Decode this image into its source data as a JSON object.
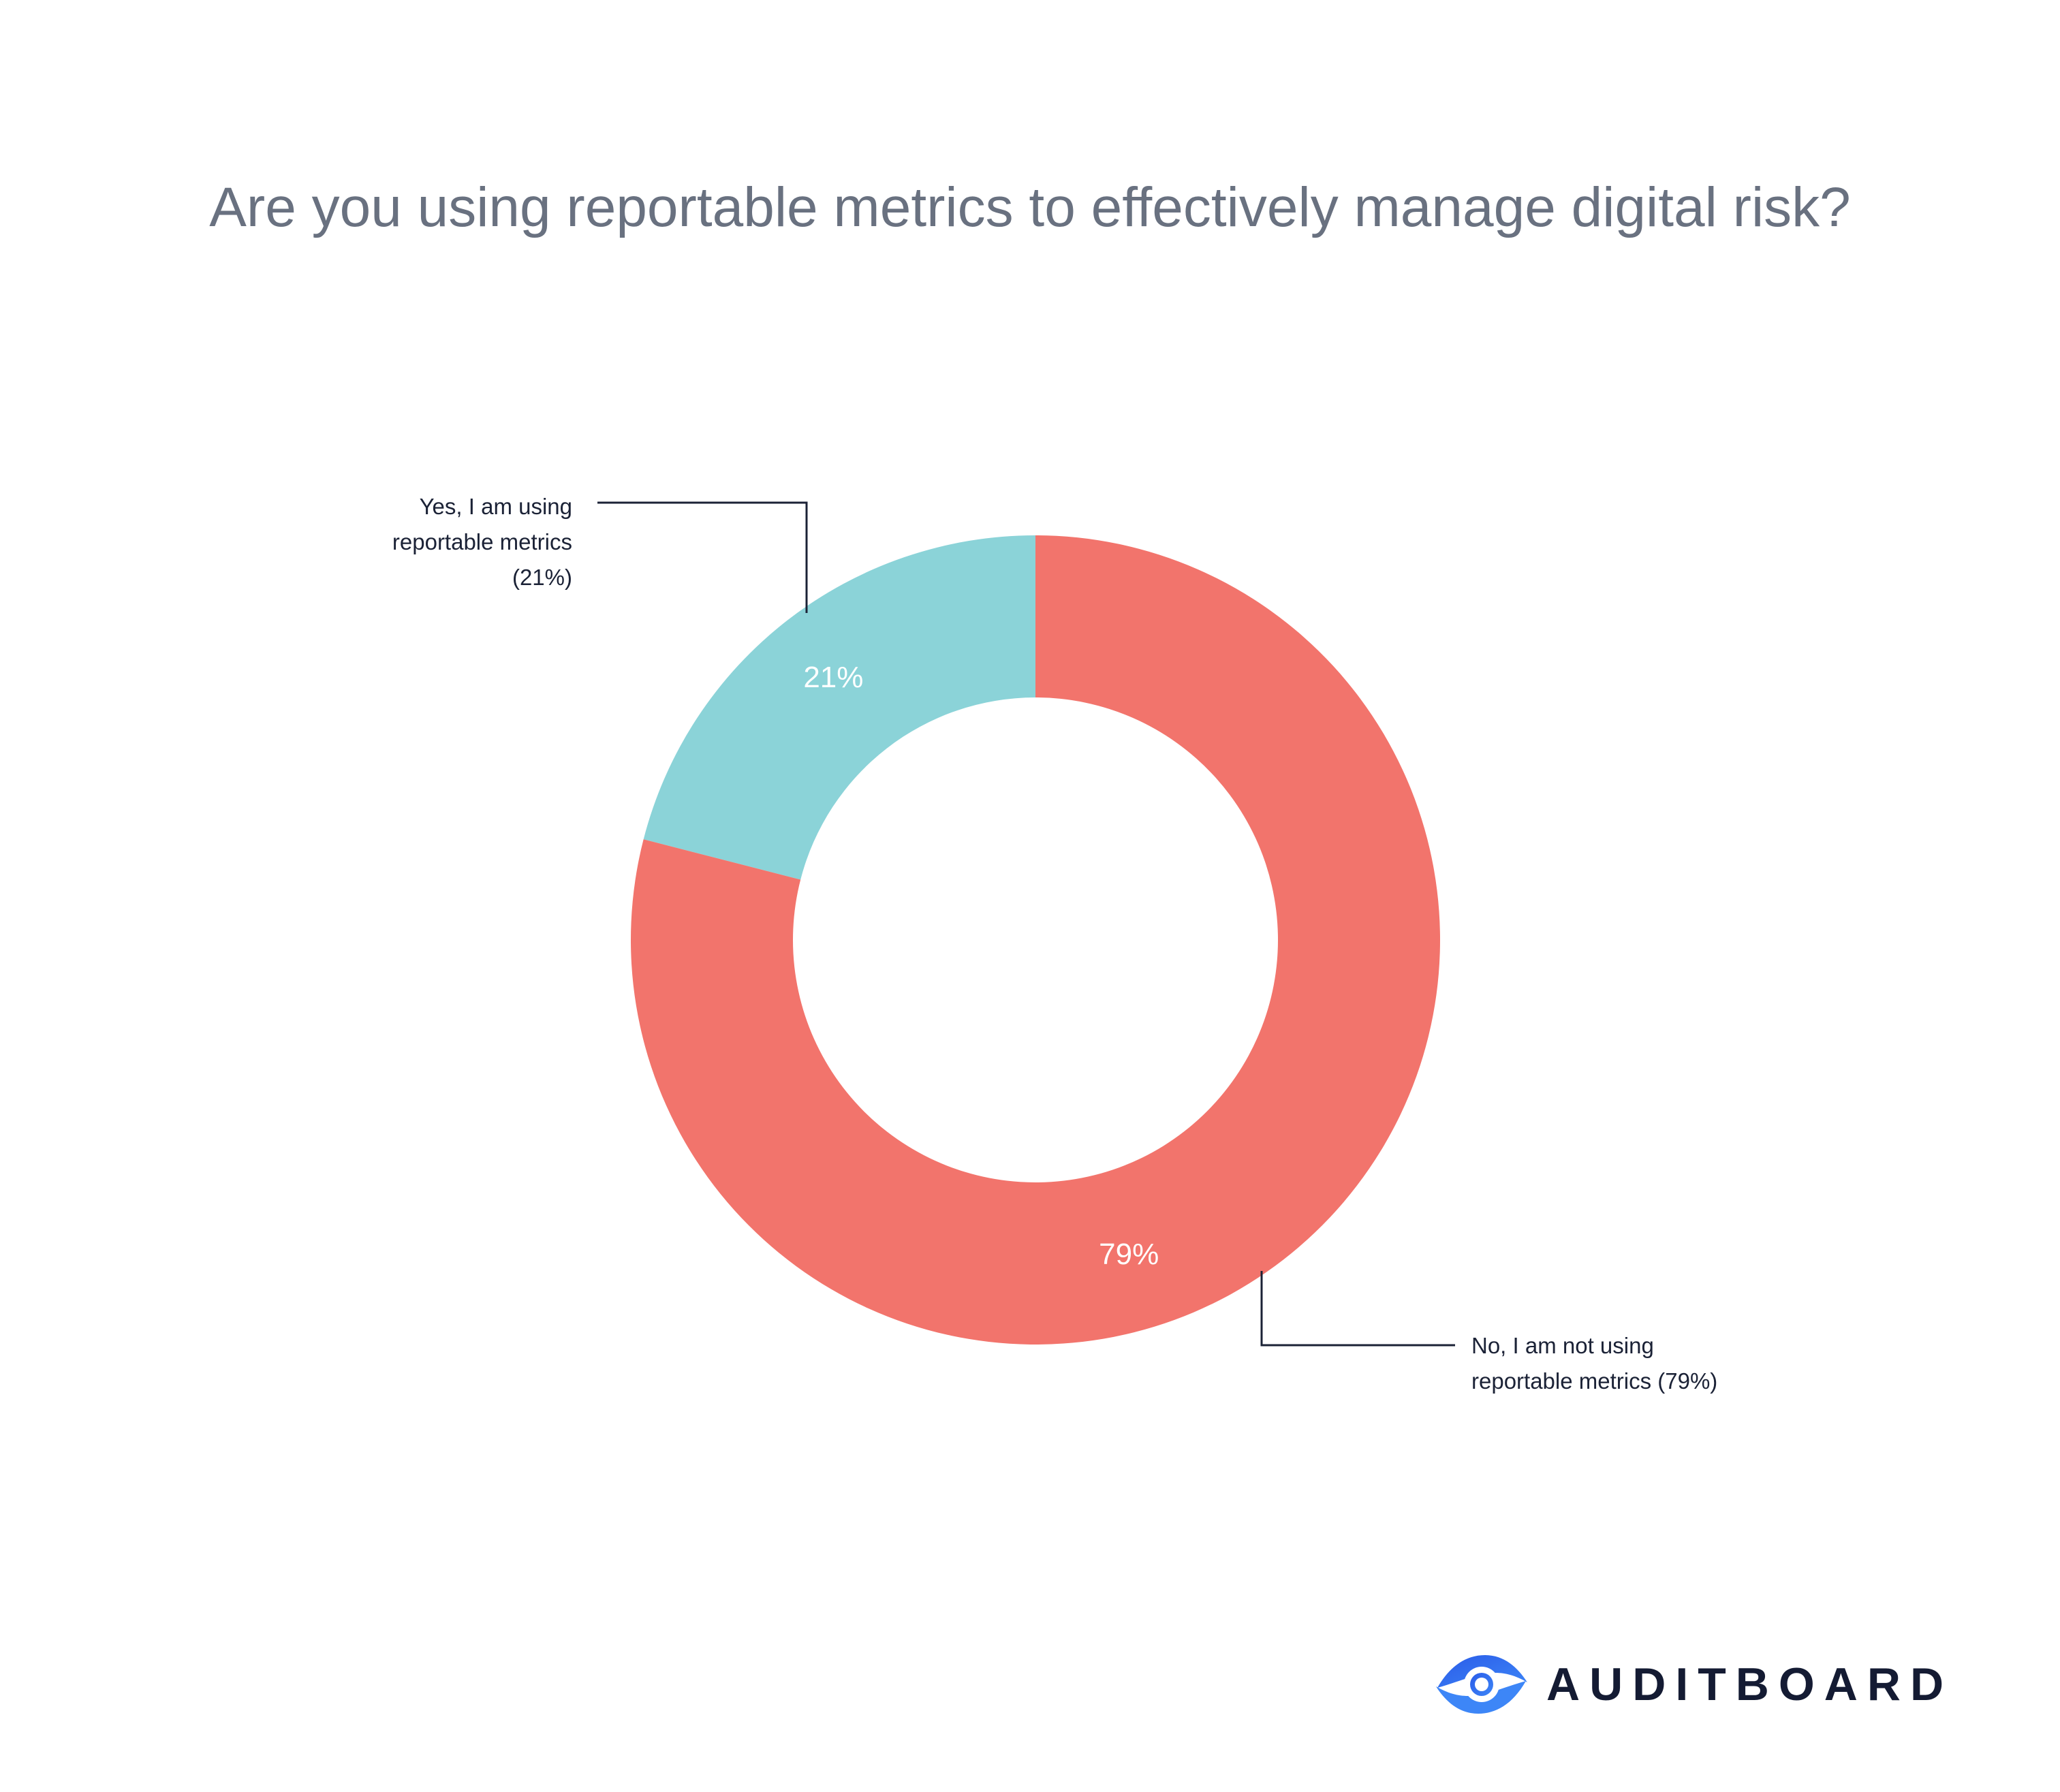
{
  "chart_data": {
    "type": "pie",
    "variant": "donut",
    "title": "Are you using reportable metrics to effectively manage digital risk?",
    "slices": [
      {
        "label": "Yes, I am using reportable metrics (21%)",
        "label_lines": [
          "Yes, I am using",
          "reportable metrics",
          "(21%)"
        ],
        "value": 21,
        "value_label": "21%",
        "color": "#8BD3D8"
      },
      {
        "label": "No, I am not using reportable metrics (79%)",
        "label_lines": [
          "No, I am not using",
          "reportable metrics (79%)"
        ],
        "value": 79,
        "value_label": "79%",
        "color": "#F2746C"
      }
    ],
    "start_angle": "12 o'clock",
    "direction": "counterclockwise for first slice",
    "legend": "callout labels with leader lines"
  },
  "brand": {
    "name": "AUDITBOARD",
    "logo_icon": "auditboard-logo-icon",
    "logo_color": "#2F6BF2",
    "text_color": "#141B33"
  },
  "colors": {
    "title": "#697180",
    "label_text": "#1B2236",
    "leader_line": "#1B2236",
    "value_text": "#FFFFFF",
    "background": "#FFFFFF"
  }
}
